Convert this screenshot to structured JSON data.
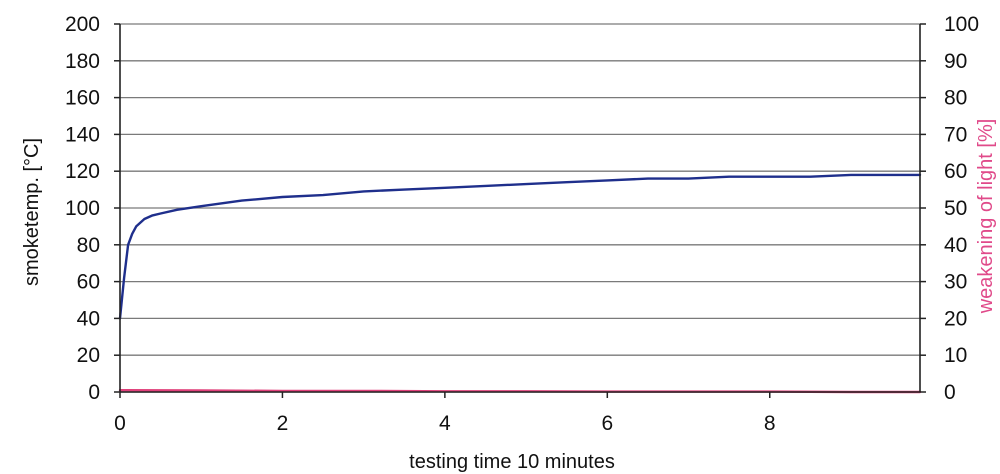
{
  "chart_data": {
    "type": "line",
    "title": "",
    "xlabel": "testing time 10 minutes",
    "ylabel_left": "smoketemp. [°C]",
    "ylabel_right": "weakening of light [%]",
    "xlim": [
      0,
      9.85
    ],
    "ylim_left": [
      0,
      200
    ],
    "ylim_right": [
      0,
      100
    ],
    "x_ticks": [
      "0",
      "2",
      "4",
      "6",
      "8"
    ],
    "y_ticks_left": [
      "0",
      "20",
      "40",
      "60",
      "80",
      "100",
      "120",
      "140",
      "160",
      "180",
      "200"
    ],
    "y_ticks_right": [
      "0",
      "10",
      "20",
      "30",
      "40",
      "50",
      "60",
      "70",
      "80",
      "90",
      "100"
    ],
    "grid": true,
    "colors": {
      "temperature": "#1f2f8c",
      "light": "#e0407a",
      "grid": "#7a7a7a",
      "axis": "#222222",
      "right_label": "#e04a8a"
    },
    "series": [
      {
        "axis": "left",
        "color": "#1f2f8c",
        "x": [
          0,
          0.05,
          0.1,
          0.15,
          0.2,
          0.3,
          0.4,
          0.5,
          0.7,
          1.0,
          1.5,
          2.0,
          2.5,
          3.0,
          3.5,
          4.0,
          4.5,
          5.0,
          5.5,
          6.0,
          6.5,
          7.0,
          7.5,
          8.0,
          8.5,
          9.0,
          9.5,
          9.85
        ],
        "values": [
          40,
          62,
          80,
          86,
          90,
          94,
          96,
          97,
          99,
          101,
          104,
          106,
          107,
          109,
          110,
          111,
          112,
          113,
          114,
          115,
          116,
          116,
          117,
          117,
          117,
          118,
          118,
          118
        ]
      },
      {
        "axis": "right",
        "color": "#e0407a",
        "x": [
          0,
          1,
          2,
          3,
          4,
          5,
          6,
          7,
          8,
          9,
          9.85
        ],
        "values": [
          0.5,
          0.4,
          0.3,
          0.3,
          0.2,
          0.2,
          0.1,
          0.1,
          0.1,
          0.0,
          0.0
        ]
      }
    ]
  }
}
